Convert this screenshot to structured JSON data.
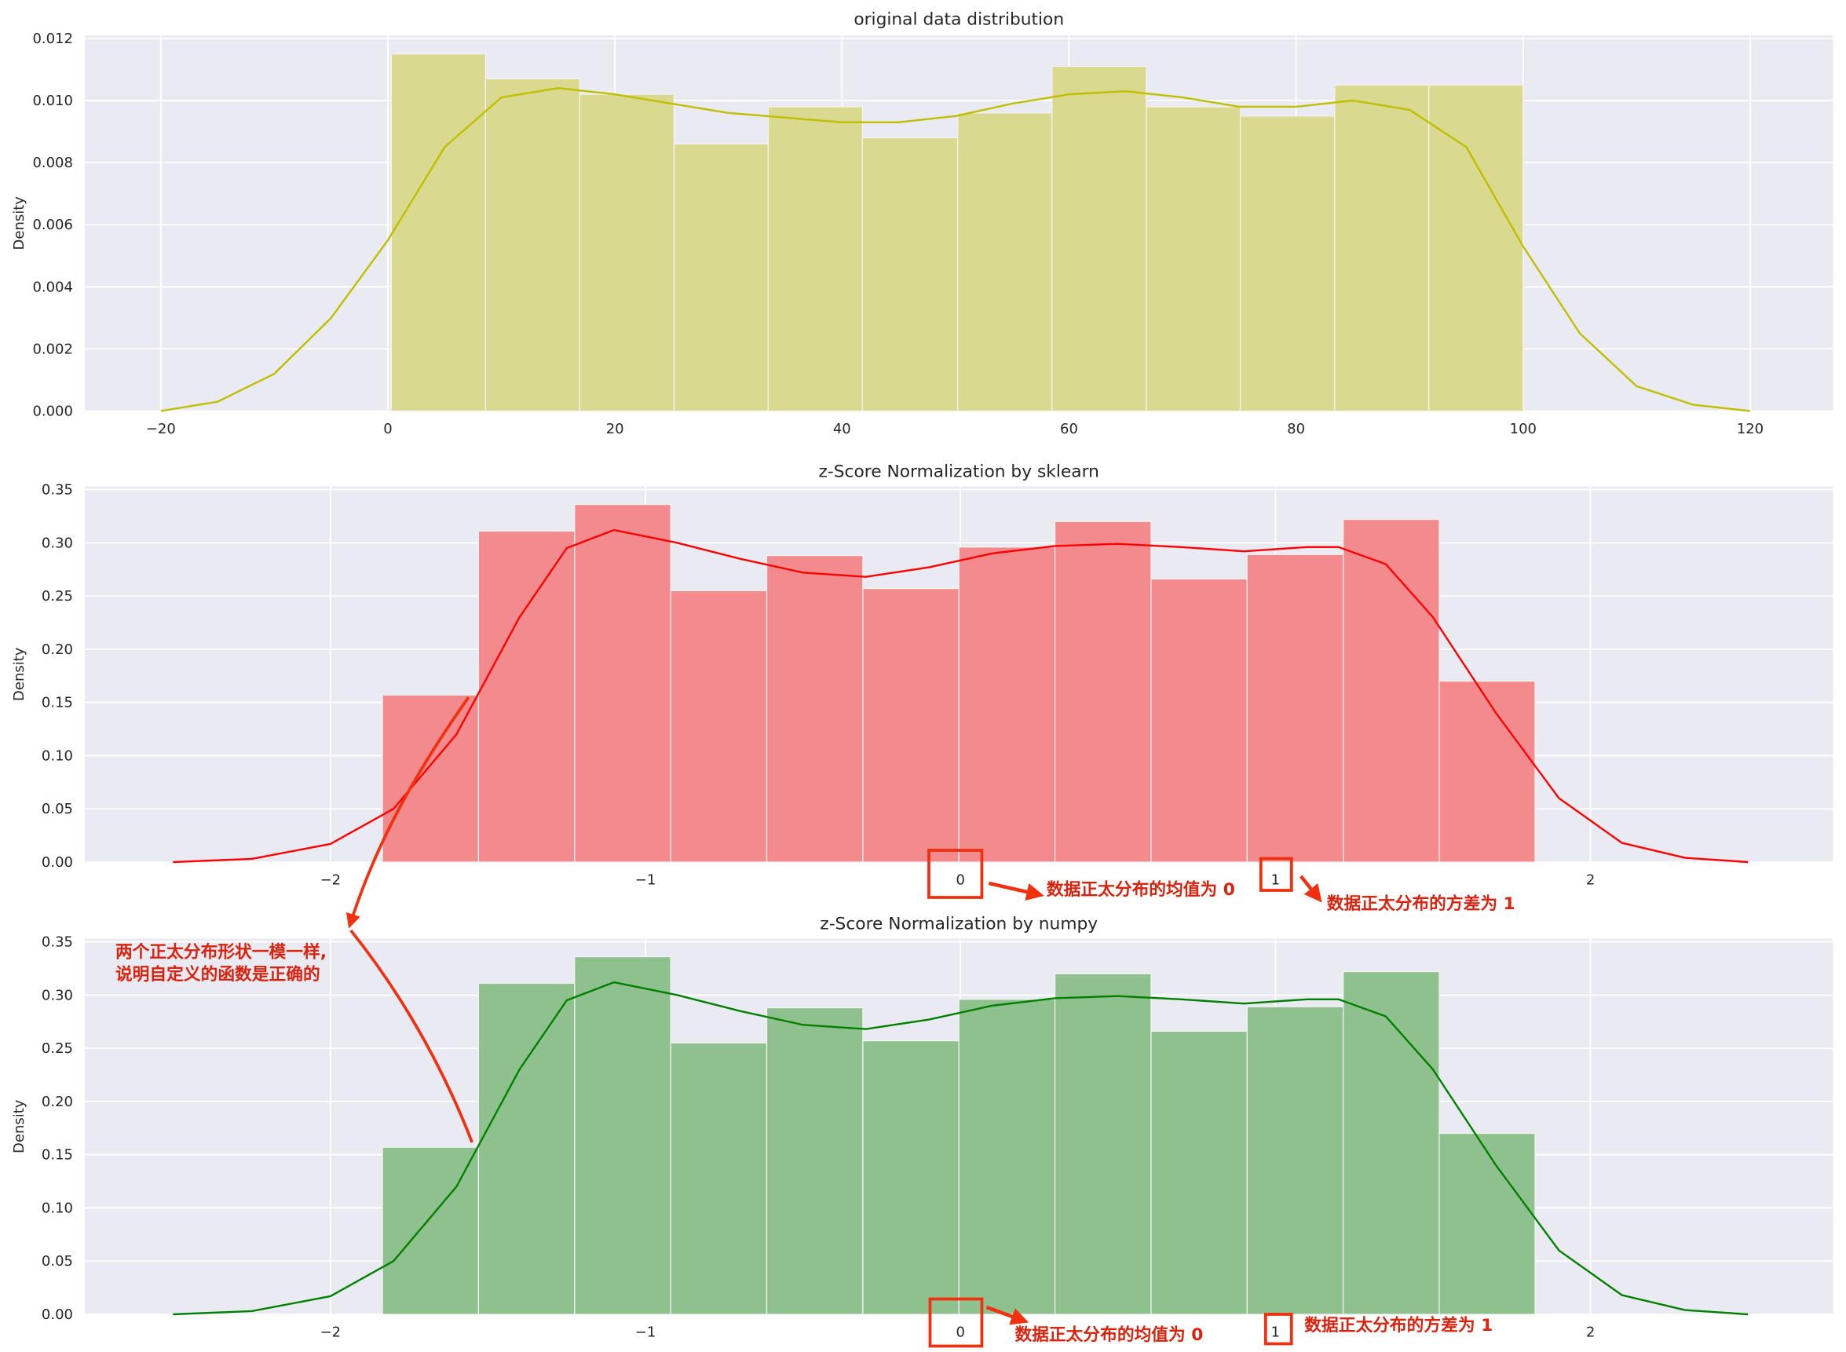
{
  "chart_data": [
    {
      "type": "histogram",
      "title": "original data distribution",
      "ylabel": "Density",
      "bins": [
        0.3,
        8.6,
        16.9,
        25.2,
        33.5,
        41.8,
        50.2,
        58.5,
        66.8,
        75.1,
        83.4,
        91.7,
        100.0
      ],
      "values": [
        0.0115,
        0.0107,
        0.0102,
        0.0086,
        0.0098,
        0.0088,
        0.0096,
        0.0111,
        0.0098,
        0.0095,
        0.0105,
        0.0105
      ],
      "color": "#d9d98f",
      "kde": {
        "color": "#bfbf00",
        "x": [
          -20,
          -15,
          -10,
          -5,
          0,
          5,
          10,
          15,
          20,
          30,
          40,
          45,
          50,
          55,
          60,
          65,
          70,
          75,
          80,
          85,
          90,
          95,
          100,
          105,
          110,
          115,
          120
        ],
        "values": [
          0.0,
          0.0003,
          0.0012,
          0.003,
          0.0055,
          0.0085,
          0.0101,
          0.0104,
          0.0102,
          0.0096,
          0.0093,
          0.0093,
          0.0095,
          0.0099,
          0.0102,
          0.0103,
          0.0101,
          0.0098,
          0.0098,
          0.01,
          0.0097,
          0.0085,
          0.0053,
          0.0025,
          0.0008,
          0.0002,
          0.0
        ]
      },
      "xlim": [
        -26.7,
        127.3
      ],
      "ylim": [
        0,
        0.0121
      ],
      "xticks": [
        {
          "value": -20,
          "label": "−20"
        },
        0,
        20,
        40,
        60,
        80,
        100,
        120
      ],
      "yticks": [
        {
          "value": 0,
          "label": "0.000"
        },
        0.002,
        0.004,
        0.006,
        0.008,
        {
          "value": 0.01,
          "label": "0.010"
        },
        0.012
      ],
      "grid": true,
      "annotations": []
    },
    {
      "type": "histogram",
      "title": "z-Score Normalization by sklearn",
      "ylabel": "Density",
      "bins": [
        -1.835,
        -1.53,
        -1.225,
        -0.92,
        -0.615,
        -0.31,
        -0.005,
        0.3,
        0.605,
        0.91,
        1.215,
        1.52,
        1.824
      ],
      "values": [
        0.157,
        0.311,
        0.336,
        0.255,
        0.288,
        0.257,
        0.296,
        0.32,
        0.266,
        0.289,
        0.322,
        0.17
      ],
      "color": "#f38b8e",
      "kde": {
        "color": "#ff0000",
        "x": [
          -2.5,
          -2.25,
          -2,
          -1.8,
          -1.6,
          -1.4,
          -1.25,
          -1.1,
          -0.9,
          -0.7,
          -0.5,
          -0.3,
          -0.1,
          0.1,
          0.3,
          0.5,
          0.7,
          0.9,
          1.1,
          1.2,
          1.35,
          1.5,
          1.7,
          1.9,
          2.1,
          2.3,
          2.5
        ],
        "values": [
          0.0,
          0.003,
          0.017,
          0.05,
          0.12,
          0.23,
          0.295,
          0.312,
          0.3,
          0.285,
          0.272,
          0.268,
          0.277,
          0.29,
          0.297,
          0.299,
          0.296,
          0.292,
          0.296,
          0.296,
          0.28,
          0.23,
          0.14,
          0.06,
          0.018,
          0.004,
          0.0
        ]
      },
      "xlim": [
        -2.78,
        2.77
      ],
      "ylim": [
        0,
        0.353
      ],
      "xticks": [
        {
          "value": -2,
          "label": "−2"
        },
        {
          "value": -1,
          "label": "−1"
        },
        0,
        1,
        2
      ],
      "yticks": [
        {
          "value": 0,
          "label": "0.00"
        },
        0.05,
        {
          "value": 0.1,
          "label": "0.10"
        },
        0.15,
        {
          "value": 0.2,
          "label": "0.20"
        },
        0.25,
        {
          "value": 0.3,
          "label": "0.30"
        },
        0.35
      ],
      "grid": true,
      "annotations": [
        "数据正太分布的均值为 0",
        "数据正太分布的方差为 1"
      ]
    },
    {
      "type": "histogram",
      "title": "z-Score Normalization by numpy",
      "ylabel": "Density",
      "bins": [
        -1.835,
        -1.53,
        -1.225,
        -0.92,
        -0.615,
        -0.31,
        -0.005,
        0.3,
        0.605,
        0.91,
        1.215,
        1.52,
        1.824
      ],
      "values": [
        0.157,
        0.311,
        0.336,
        0.255,
        0.288,
        0.257,
        0.296,
        0.32,
        0.266,
        0.289,
        0.322,
        0.17
      ],
      "color": "#8fc18f",
      "kde": {
        "color": "#008000",
        "x": [
          -2.5,
          -2.25,
          -2,
          -1.8,
          -1.6,
          -1.4,
          -1.25,
          -1.1,
          -0.9,
          -0.7,
          -0.5,
          -0.3,
          -0.1,
          0.1,
          0.3,
          0.5,
          0.7,
          0.9,
          1.1,
          1.2,
          1.35,
          1.5,
          1.7,
          1.9,
          2.1,
          2.3,
          2.5
        ],
        "values": [
          0.0,
          0.003,
          0.017,
          0.05,
          0.12,
          0.23,
          0.295,
          0.312,
          0.3,
          0.285,
          0.272,
          0.268,
          0.277,
          0.29,
          0.297,
          0.299,
          0.296,
          0.292,
          0.296,
          0.296,
          0.28,
          0.23,
          0.14,
          0.06,
          0.018,
          0.004,
          0.0
        ]
      },
      "xlim": [
        -2.78,
        2.77
      ],
      "ylim": [
        0,
        0.353
      ],
      "xticks": [
        {
          "value": -2,
          "label": "−2"
        },
        {
          "value": -1,
          "label": "−1"
        },
        0,
        1,
        2
      ],
      "yticks": [
        {
          "value": 0,
          "label": "0.00"
        },
        0.05,
        {
          "value": 0.1,
          "label": "0.10"
        },
        0.15,
        {
          "value": 0.2,
          "label": "0.20"
        },
        0.25,
        {
          "value": 0.3,
          "label": "0.30"
        },
        0.35
      ],
      "grid": true,
      "annotations": [
        "两个正太分布形状一模一样,",
        "说明自定义的函数是正确的",
        "数据正太分布的均值为 0",
        "数据正太分布的方差为 1"
      ]
    }
  ]
}
